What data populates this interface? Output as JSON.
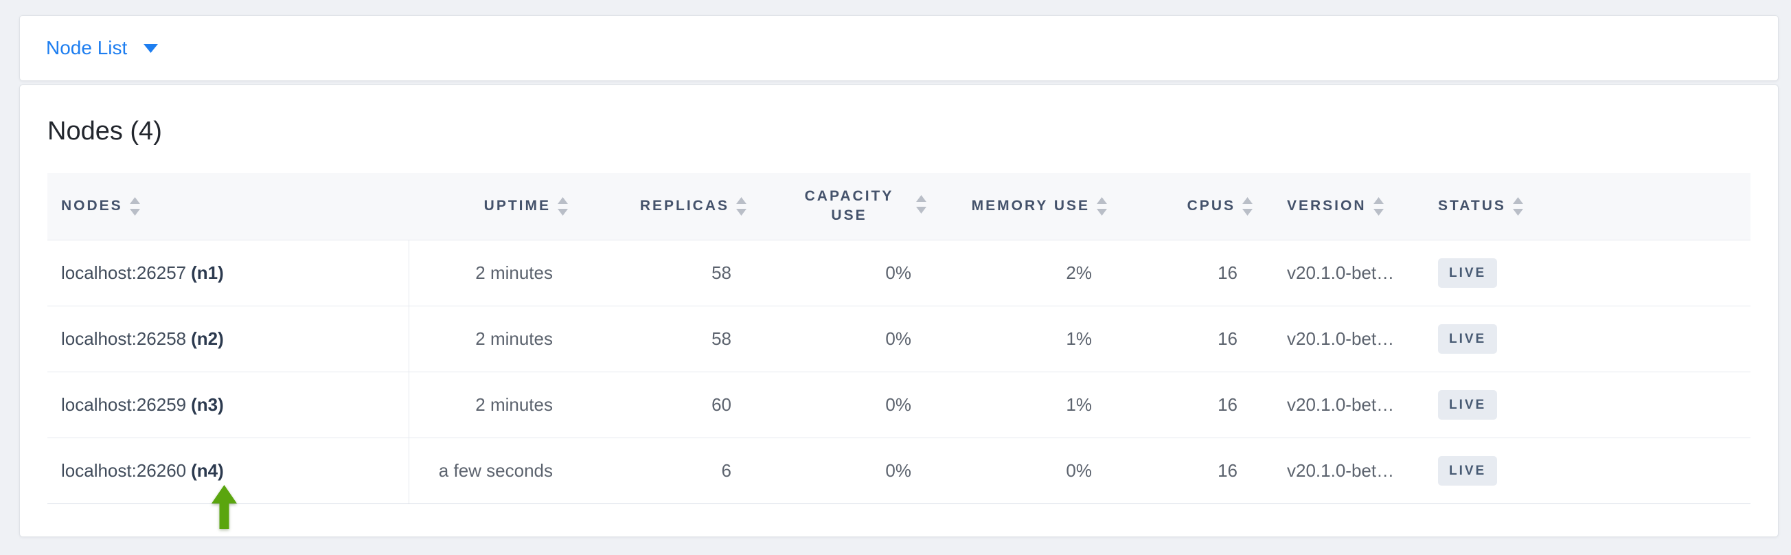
{
  "topbar": {
    "dropdown_label": "Node List",
    "caret_icon": "caret-down"
  },
  "content": {
    "title": "Nodes (4)",
    "table": {
      "headers": [
        "NODES",
        "UPTIME",
        "REPLICAS",
        "CAPACITY USE",
        "MEMORY USE",
        "CPUS",
        "VERSION",
        "STATUS"
      ],
      "sort_icon": "up-down-triangles",
      "rows": [
        {
          "address": "localhost:26257",
          "node_id": "(n1)",
          "uptime": "2 minutes",
          "replicas": "58",
          "capacity_use": "0%",
          "memory_use": "2%",
          "cpus": "16",
          "version": "v20.1.0-bet…",
          "status": "LIVE"
        },
        {
          "address": "localhost:26258",
          "node_id": "(n2)",
          "uptime": "2 minutes",
          "replicas": "58",
          "capacity_use": "0%",
          "memory_use": "1%",
          "cpus": "16",
          "version": "v20.1.0-bet…",
          "status": "LIVE"
        },
        {
          "address": "localhost:26259",
          "node_id": "(n3)",
          "uptime": "2 minutes",
          "replicas": "60",
          "capacity_use": "0%",
          "memory_use": "1%",
          "cpus": "16",
          "version": "v20.1.0-bet…",
          "status": "LIVE"
        },
        {
          "address": "localhost:26260",
          "node_id": "(n4)",
          "uptime": "a few seconds",
          "replicas": "6",
          "capacity_use": "0%",
          "memory_use": "0%",
          "cpus": "16",
          "version": "v20.1.0-bet…",
          "status": "LIVE"
        }
      ]
    }
  },
  "annotation": {
    "icon": "green-up-arrow",
    "points_at": "localhost:26260 (n4)"
  },
  "colors": {
    "accent_blue": "#1e7ef0",
    "arrow_green": "#5aa50e",
    "badge_bg": "#e7ebf1",
    "badge_text": "#475a73",
    "header_text": "#44526b"
  }
}
